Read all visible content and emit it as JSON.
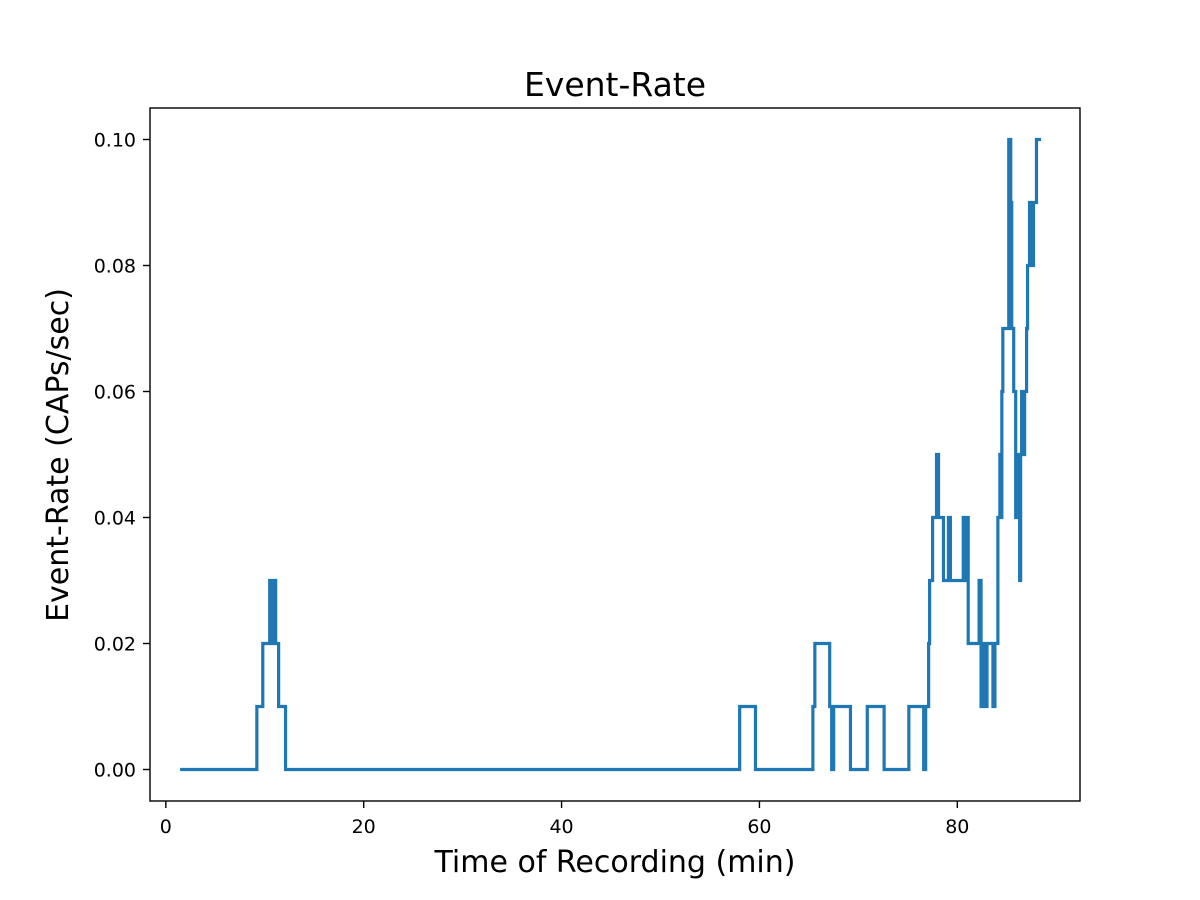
{
  "chart_data": {
    "type": "line",
    "step": true,
    "title": "Event-Rate",
    "xlabel": "Time of Recording (min)",
    "ylabel": "Event-Rate (CAPs/sec)",
    "xlim": [
      -1.6,
      92.4
    ],
    "ylim": [
      -0.005,
      0.105
    ],
    "x_ticks": [
      0,
      20,
      40,
      60,
      80
    ],
    "x_tick_labels": [
      "0",
      "20",
      "40",
      "60",
      "80"
    ],
    "y_ticks": [
      0.0,
      0.02,
      0.04,
      0.06,
      0.08,
      0.1
    ],
    "y_tick_labels": [
      "0.00",
      "0.02",
      "0.04",
      "0.06",
      "0.08",
      "0.10"
    ],
    "grid": false,
    "series": [
      {
        "color": "#1f77b4",
        "x": [
          1.6,
          9.2,
          9.8,
          10.5,
          10.7,
          10.9,
          11.1,
          11.4,
          12.1,
          58.0,
          59.6,
          65.4,
          65.6,
          67.1,
          67.3,
          67.5,
          69.2,
          70.9,
          72.6,
          75.1,
          76.6,
          76.8,
          77.1,
          77.2,
          77.5,
          77.9,
          78.1,
          78.6,
          78.8,
          79.1,
          79.3,
          79.5,
          79.7,
          80.6,
          80.8,
          80.9,
          81.1,
          81.3,
          81.4,
          82.2,
          82.4,
          82.6,
          82.8,
          83.0,
          83.2,
          83.6,
          83.8,
          84.1,
          84.3,
          84.4,
          84.5,
          84.6,
          84.7,
          84.8,
          85.2,
          85.4,
          85.5,
          85.7,
          85.9,
          86.1,
          86.2,
          86.3,
          86.4,
          86.5,
          86.7,
          86.8,
          87.0,
          87.1,
          87.2,
          87.3,
          87.4,
          87.5,
          87.7,
          87.8,
          88.0,
          88.1,
          88.3
        ],
        "y": [
          0.0,
          0.01,
          0.02,
          0.03,
          0.02,
          0.03,
          0.02,
          0.01,
          0.0,
          0.01,
          0.0,
          0.01,
          0.02,
          0.01,
          0.0,
          0.01,
          0.0,
          0.01,
          0.0,
          0.01,
          0.0,
          0.01,
          0.02,
          0.03,
          0.04,
          0.05,
          0.04,
          0.03,
          0.03,
          0.04,
          0.03,
          0.03,
          0.03,
          0.04,
          0.03,
          0.04,
          0.02,
          0.02,
          0.02,
          0.03,
          0.01,
          0.02,
          0.01,
          0.02,
          0.02,
          0.01,
          0.02,
          0.04,
          0.05,
          0.04,
          0.06,
          0.07,
          0.07,
          0.07,
          0.1,
          0.09,
          0.07,
          0.06,
          0.04,
          0.05,
          0.04,
          0.03,
          0.05,
          0.06,
          0.05,
          0.06,
          0.07,
          0.08,
          0.08,
          0.09,
          0.09,
          0.08,
          0.09,
          0.09,
          0.1,
          0.1,
          0.1
        ]
      }
    ]
  }
}
